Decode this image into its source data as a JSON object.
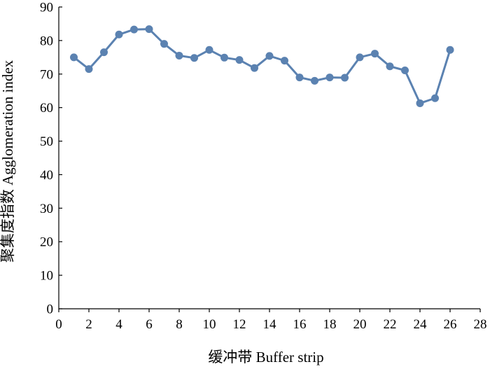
{
  "chart_data": {
    "type": "line",
    "title": "",
    "xlabel": "缓冲带 Buffer strip",
    "ylabel": "聚集度指数 Agglomeration index",
    "xlim": [
      0,
      28
    ],
    "ylim": [
      0,
      90
    ],
    "x_ticks": [
      0,
      2,
      4,
      6,
      8,
      10,
      12,
      14,
      16,
      18,
      20,
      22,
      24,
      26,
      28
    ],
    "y_ticks": [
      0,
      10,
      20,
      30,
      40,
      50,
      60,
      70,
      80,
      90
    ],
    "grid": false,
    "legend": "none",
    "series": [
      {
        "color": "#5b82b1",
        "x": [
          1,
          2,
          3,
          4,
          5,
          6,
          7,
          8,
          9,
          10,
          11,
          12,
          13,
          14,
          15,
          16,
          17,
          18,
          19,
          20,
          21,
          22,
          23,
          24,
          25,
          26
        ],
        "y": [
          75,
          71.5,
          76.5,
          81.8,
          83.3,
          83.4,
          79,
          75.5,
          74.8,
          77.2,
          74.9,
          74.2,
          71.8,
          75.4,
          74,
          69,
          68,
          69,
          68.9,
          75,
          76.1,
          72.3,
          71.1,
          61.3,
          62.8,
          77.2
        ]
      }
    ]
  }
}
